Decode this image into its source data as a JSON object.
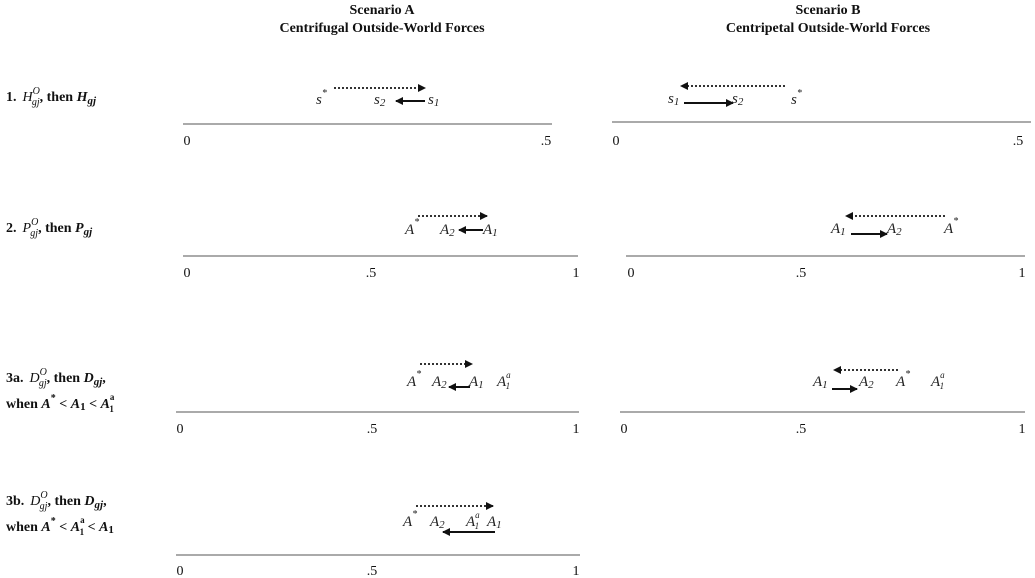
{
  "header": {
    "scenario_a": {
      "title": "Scenario A",
      "subtitle": "Centrifugal Outside-World Forces"
    },
    "scenario_b": {
      "title": "Scenario B",
      "subtitle": "Centripetal Outside-World Forces"
    }
  },
  "rows": [
    {
      "num": "1.",
      "sym": "H",
      "sup": "O",
      "sub": "gj",
      "then": ", then ",
      "sym2": "H",
      "sub2": "gj"
    },
    {
      "num": "2.",
      "sym": "P",
      "sup": "O",
      "sub": "gj",
      "then": ", then ",
      "sym2": "P",
      "sub2": "gj"
    },
    {
      "num": "3a.",
      "sym": "D",
      "sup": "O",
      "sub": "gj",
      "then": ", then ",
      "sym2": "D",
      "sub2": "gj",
      "tail": ",",
      "cond": {
        "when": "when ",
        "a": "A",
        "a_sup": "*",
        "lt1": " < ",
        "b": "A",
        "b_sub": "1",
        "lt2": " < ",
        "c": "A",
        "c_sup": "a",
        "c_sub": "1"
      }
    },
    {
      "num": "3b.",
      "sym": "D",
      "sup": "O",
      "sub": "gj",
      "then": ", then ",
      "sym2": "D",
      "sub2": "gj",
      "tail": ",",
      "cond": {
        "when": "when ",
        "a": "A",
        "a_sup": "*",
        "lt1": " < ",
        "b": "A",
        "b_sup": "a",
        "b_sub": "1",
        "lt2": " < ",
        "c": "A",
        "c_sub": "1"
      }
    }
  ],
  "axes": {
    "row1": {
      "ticks": [
        "0",
        ".5"
      ]
    },
    "rowN": {
      "ticks": [
        "0",
        ".5",
        "1"
      ]
    }
  },
  "points": {
    "s_star": "s",
    "star": "*",
    "s1": "s",
    "s2": "s",
    "sub1": "1",
    "sub2": "2",
    "A": "A",
    "A_star_sup": "*",
    "a_sup": "a"
  }
}
